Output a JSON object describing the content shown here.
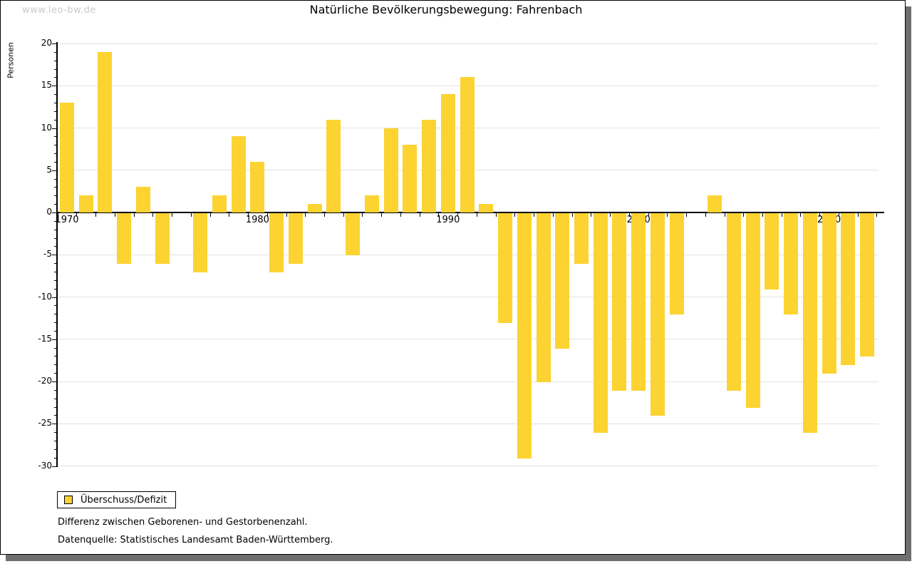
{
  "watermark": "www.leo-bw.de",
  "title": "Natürliche Bevölkerungsbewegung: Fahrenbach",
  "legend": {
    "label": "Überschuss/Defizit"
  },
  "footnotes": {
    "line1": "Differenz zwischen Geborenen- und Gestorbenenzahl.",
    "line2": "Datenquelle: Statistisches Landesamt Baden-Württemberg."
  },
  "colors": {
    "bar": "#fcd331",
    "grid": "#e2e2e2",
    "axis": "#000000",
    "watermark": "#c9c9c9",
    "shadow": "#6f6f6f",
    "background": "#ffffff"
  },
  "chart_data": {
    "type": "bar",
    "title": "Natürliche Bevölkerungsbewegung: Fahrenbach",
    "xlabel": "",
    "ylabel": "Personen",
    "ylim": [
      -30,
      20
    ],
    "ytick_step": 5,
    "ytick_labels": [
      20,
      15,
      10,
      5,
      0,
      -5,
      -10,
      -15,
      -20,
      -25,
      -30
    ],
    "xtick_labels": [
      1970,
      1980,
      1990,
      2000,
      2010
    ],
    "grid": true,
    "legend_position": "bottom-left",
    "categories": [
      1970,
      1971,
      1972,
      1973,
      1974,
      1975,
      1976,
      1977,
      1978,
      1979,
      1980,
      1981,
      1982,
      1983,
      1984,
      1985,
      1986,
      1987,
      1988,
      1989,
      1990,
      1991,
      1992,
      1993,
      1994,
      1995,
      1996,
      1997,
      1998,
      1999,
      2000,
      2001,
      2002,
      2003,
      2004,
      2005,
      2006,
      2007,
      2008,
      2009,
      2010,
      2011,
      2012
    ],
    "series": [
      {
        "name": "Überschuss/Defizit",
        "values": [
          13,
          2,
          19,
          -6,
          3,
          -6,
          0,
          -7,
          2,
          9,
          6,
          -7,
          -6,
          1,
          11,
          -5,
          2,
          10,
          8,
          11,
          14,
          16,
          1,
          -13,
          -29,
          -20,
          -16,
          -6,
          -26,
          -21,
          -21,
          -24,
          -12,
          0,
          2,
          -21,
          -23,
          -9,
          -12,
          -26,
          -19,
          -18,
          -17
        ]
      }
    ]
  }
}
